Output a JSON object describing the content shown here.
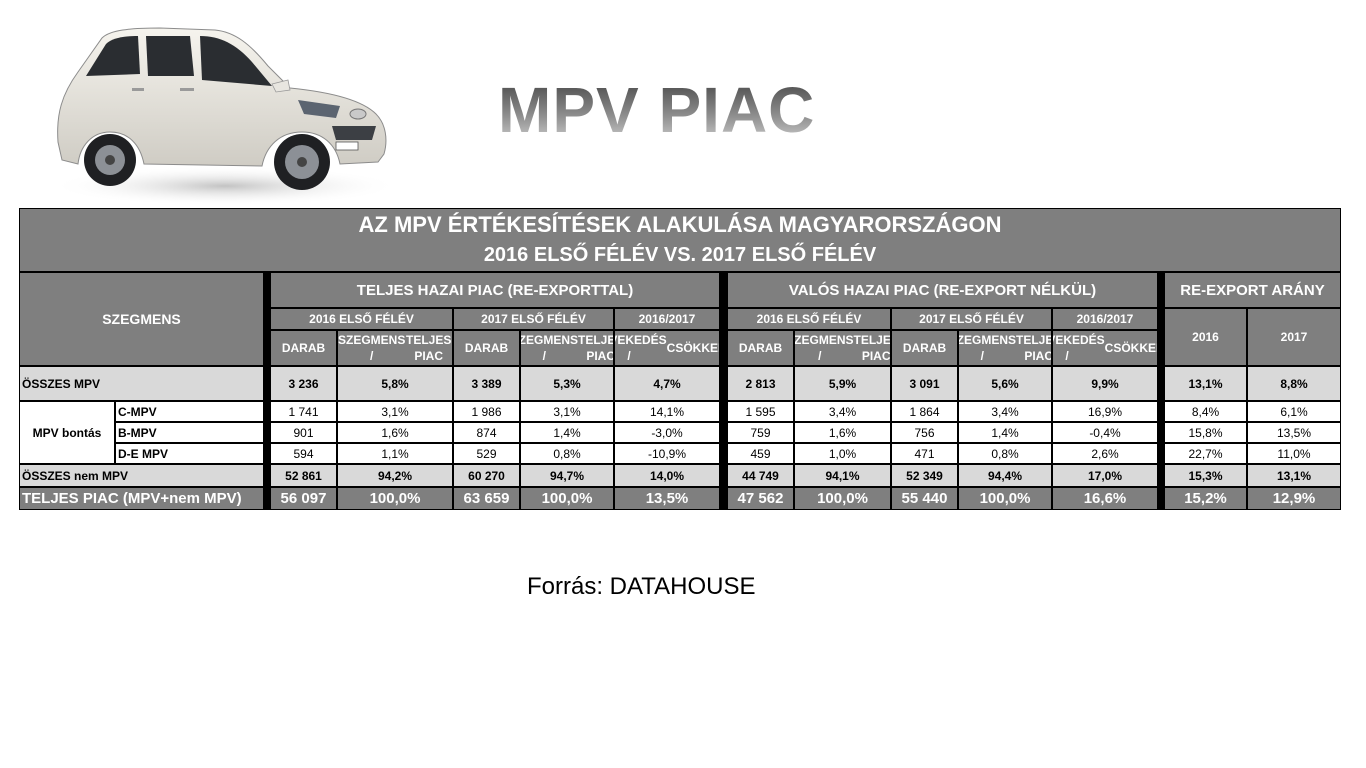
{
  "page_title": "MPV PIAC",
  "source": "Forrás: DATAHOUSE",
  "table": {
    "title_line1": "AZ MPV ÉRTÉKESÍTÉSEK ALAKULÁSA MAGYARORSZÁGON",
    "title_line2": "2016 ELSŐ FÉLÉV VS. 2017 ELSŐ FÉLÉV",
    "segment_header": "SZEGMENS",
    "group1": "TELJES HAZAI PIAC (RE-EXPORTTAL)",
    "group2": "VALÓS HAZAI PIAC (RE-EXPORT NÉLKÜL)",
    "group3": "RE-EXPORT ARÁNY",
    "period_2016": "2016 ELSŐ FÉLÉV",
    "period_2017": "2017 ELSŐ FÉLÉV",
    "period_change": "2016/2017",
    "col_darab": "DARAB",
    "col_share_1": "SZEGMENS /",
    "col_share_2": "TELJES PIAC",
    "col_change_1": "NÖVEKEDÉS /",
    "col_change_2": "CSÖKKENÉS",
    "year_2016": "2016",
    "year_2017": "2017",
    "breakdown_label": "MPV bontás",
    "rows": [
      {
        "label": "ÖSSZES MPV",
        "values": [
          "3 236",
          "5,8%",
          "3 389",
          "5,3%",
          "4,7%",
          "2 813",
          "5,9%",
          "3 091",
          "5,6%",
          "9,9%",
          "13,1%",
          "8,8%"
        ]
      },
      {
        "label": "C-MPV",
        "values": [
          "1 741",
          "3,1%",
          "1 986",
          "3,1%",
          "14,1%",
          "1 595",
          "3,4%",
          "1 864",
          "3,4%",
          "16,9%",
          "8,4%",
          "6,1%"
        ]
      },
      {
        "label": "B-MPV",
        "values": [
          "901",
          "1,6%",
          "874",
          "1,4%",
          "-3,0%",
          "759",
          "1,6%",
          "756",
          "1,4%",
          "-0,4%",
          "15,8%",
          "13,5%"
        ]
      },
      {
        "label": "D-E MPV",
        "values": [
          "594",
          "1,1%",
          "529",
          "0,8%",
          "-10,9%",
          "459",
          "1,0%",
          "471",
          "0,8%",
          "2,6%",
          "22,7%",
          "11,0%"
        ]
      },
      {
        "label": "ÖSSZES nem MPV",
        "values": [
          "52 861",
          "94,2%",
          "60 270",
          "94,7%",
          "14,0%",
          "44 749",
          "94,1%",
          "52 349",
          "94,4%",
          "17,0%",
          "15,3%",
          "13,1%"
        ]
      },
      {
        "label": "TELJES PIAC (MPV+nem MPV)",
        "values": [
          "56 097",
          "100,0%",
          "63 659",
          "100,0%",
          "13,5%",
          "47 562",
          "100,0%",
          "55 440",
          "100,0%",
          "16,6%",
          "15,2%",
          "12,9%"
        ]
      }
    ]
  }
}
